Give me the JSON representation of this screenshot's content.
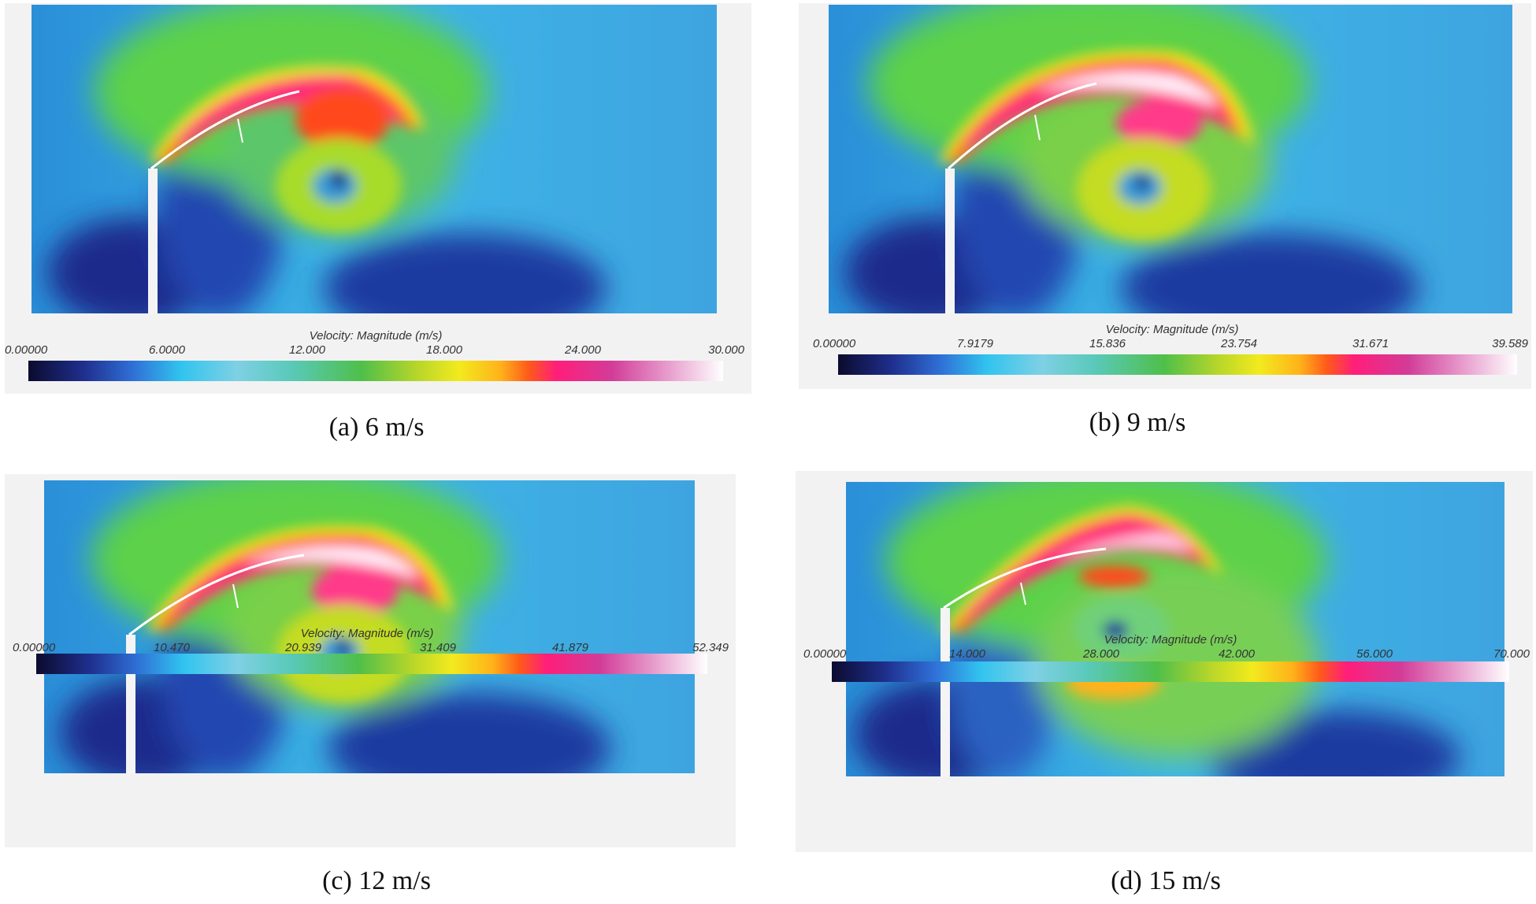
{
  "colorbar_title": "Velocity: Magnitude (m/s)",
  "panels": [
    {
      "caption": "(a) 6 m/s",
      "ticks": [
        "0.00000",
        "6.0000",
        "12.000",
        "18.000",
        "24.000",
        "30.000"
      ]
    },
    {
      "caption": "(b) 9 m/s",
      "ticks": [
        "0.00000",
        "7.9179",
        "15.836",
        "23.754",
        "31.671",
        "39.589"
      ]
    },
    {
      "caption": "(c) 12 m/s",
      "ticks": [
        "0.00000",
        "10.470",
        "20.939",
        "31.409",
        "41.879",
        "52.349"
      ]
    },
    {
      "caption": "(d) 15 m/s",
      "ticks": [
        "0.00000",
        "14.000",
        "28.000",
        "42.000",
        "56.000",
        "70.000"
      ]
    }
  ]
}
